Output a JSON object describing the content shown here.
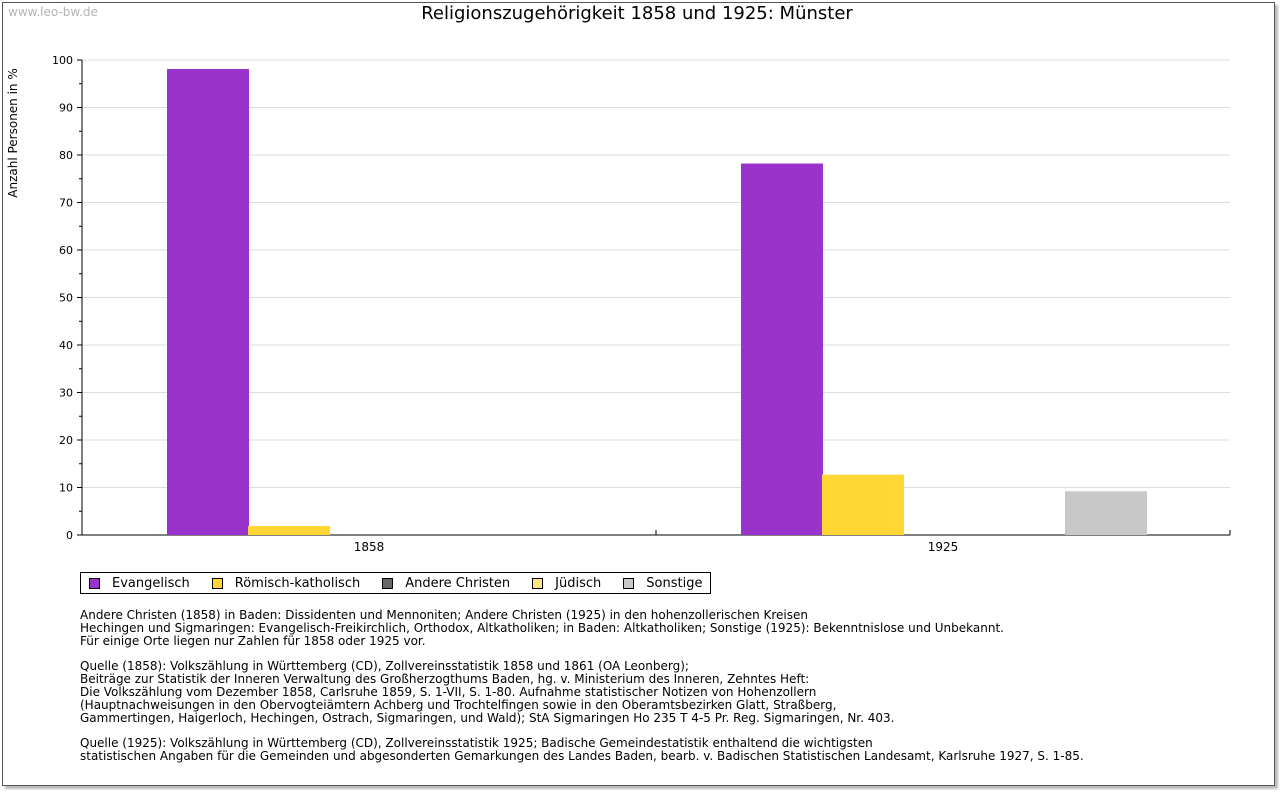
{
  "watermark": "www.leo-bw.de",
  "chart_data": {
    "type": "bar",
    "title": "Religionszugehörigkeit 1858 und 1925: Münster",
    "xlabel": "",
    "ylabel": "Anzahl Personen in %",
    "ylim": [
      0,
      100
    ],
    "yticks": [
      0,
      10,
      20,
      30,
      40,
      50,
      60,
      70,
      80,
      90,
      100
    ],
    "grid": true,
    "categories": [
      "1858",
      "1925"
    ],
    "series": [
      {
        "name": "Evangelisch",
        "color": "#9933cc",
        "values": [
          98.1,
          78.2
        ]
      },
      {
        "name": "Römisch-katholisch",
        "color": "#ffd633",
        "values": [
          1.9,
          12.7
        ]
      },
      {
        "name": "Andere Christen",
        "color": "#666666",
        "values": [
          0,
          0
        ]
      },
      {
        "name": "Jüdisch",
        "color": "#ffe680",
        "values": [
          0,
          0
        ]
      },
      {
        "name": "Sonstige",
        "color": "#c8c8c8",
        "values": [
          0,
          9.2
        ]
      }
    ],
    "legend_position": "bottom-left"
  },
  "notes": [
    [
      "Andere Christen (1858) in Baden: Dissidenten und Mennoniten; Andere Christen (1925) in den hohenzollerischen Kreisen",
      "Hechingen und Sigmaringen: Evangelisch-Freikirchlich, Orthodox, Altkatholiken; in Baden: Altkatholiken; Sonstige (1925): Bekenntnislose und Unbekannt.",
      "Für einige Orte liegen nur Zahlen für 1858 oder 1925 vor."
    ],
    [
      "Quelle (1858): Volkszählung in Württemberg (CD), Zollvereinsstatistik 1858 und 1861 (OA Leonberg);",
      "Beiträge zur Statistik der Inneren Verwaltung des Großherzogthums Baden, hg. v. Ministerium des Inneren, Zehntes Heft:",
      "Die Volkszählung vom Dezember 1858, Carlsruhe 1859, S. 1-VII, S. 1-80. Aufnahme statistischer Notizen von Hohenzollern",
      "(Hauptnachweisungen in den Obervogteiämtern Achberg und Trochtelfingen sowie in den Oberamtsbezirken Glatt, Straßberg,",
      "Gammertingen, Haigerloch, Hechingen, Ostrach, Sigmaringen, und Wald); StA Sigmaringen Ho 235 T 4-5 Pr. Reg. Sigmaringen, Nr. 403."
    ],
    [
      "Quelle (1925): Volkszählung in Württemberg (CD), Zollvereinsstatistik 1925; Badische Gemeindestatistik enthaltend die wichtigsten",
      "statistischen Angaben für die Gemeinden und abgesonderten Gemarkungen des Landes Baden, bearb. v. Badischen Statistischen Landesamt, Karlsruhe 1927, S. 1-85."
    ]
  ]
}
